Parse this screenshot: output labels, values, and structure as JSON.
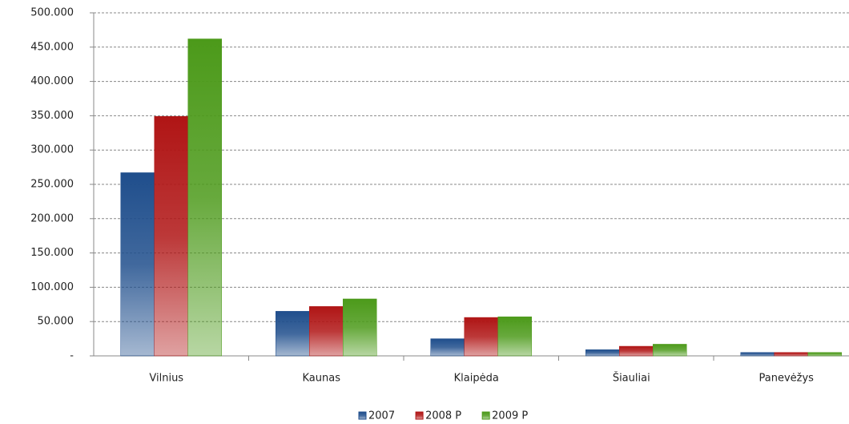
{
  "chart_data": {
    "type": "bar",
    "categories": [
      "Vilnius",
      "Kaunas",
      "Klaipėda",
      "Šiauliai",
      "Panevėžys"
    ],
    "series": [
      {
        "name": "2007",
        "color": "#1f4e8c",
        "values": [
          267000,
          65000,
          25000,
          9000,
          5000
        ]
      },
      {
        "name": "2008 P",
        "color": "#b01515",
        "values": [
          349000,
          72000,
          56000,
          14000,
          5000
        ]
      },
      {
        "name": "2009 P",
        "color": "#4c9a1a",
        "values": [
          462000,
          83000,
          57000,
          17000,
          5000
        ]
      }
    ],
    "ylim": [
      0,
      500000
    ],
    "yticks": [
      {
        "value": 0,
        "label": "-"
      },
      {
        "value": 50000,
        "label": "50.000"
      },
      {
        "value": 100000,
        "label": "100.000"
      },
      {
        "value": 150000,
        "label": "150.000"
      },
      {
        "value": 200000,
        "label": "200.000"
      },
      {
        "value": 250000,
        "label": "250.000"
      },
      {
        "value": 300000,
        "label": "300.000"
      },
      {
        "value": 350000,
        "label": "350.000"
      },
      {
        "value": 400000,
        "label": "400.000"
      },
      {
        "value": 450000,
        "label": "450.000"
      },
      {
        "value": 500000,
        "label": "500.000"
      }
    ],
    "grid": true,
    "legend": "bottom"
  }
}
